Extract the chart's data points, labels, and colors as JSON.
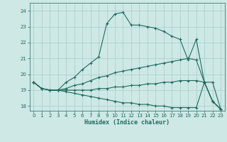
{
  "xlabel": "Humidex (Indice chaleur)",
  "bg_color": "#cde8e5",
  "grid_color": "#a8ccca",
  "line_color": "#1e6b5e",
  "xlim": [
    -0.5,
    23.5
  ],
  "ylim": [
    17.7,
    24.5
  ],
  "xticks": [
    0,
    1,
    2,
    3,
    4,
    5,
    6,
    7,
    8,
    9,
    10,
    11,
    12,
    13,
    14,
    15,
    16,
    17,
    18,
    19,
    20,
    21,
    22,
    23
  ],
  "yticks": [
    18,
    19,
    20,
    21,
    22,
    23,
    24
  ],
  "curves": [
    {
      "x": [
        0,
        1,
        2,
        3,
        4,
        5,
        6,
        7,
        8,
        9,
        10,
        11,
        12,
        13,
        14,
        15,
        16,
        17,
        18,
        19,
        20,
        21,
        22,
        23
      ],
      "y": [
        19.5,
        19.1,
        19.0,
        19.0,
        19.5,
        19.8,
        20.3,
        20.7,
        21.1,
        23.2,
        23.8,
        23.9,
        23.1,
        23.1,
        23.0,
        22.9,
        22.7,
        22.4,
        22.2,
        20.9,
        22.2,
        19.5,
        18.3,
        17.8
      ]
    },
    {
      "x": [
        0,
        1,
        2,
        3,
        4,
        5,
        6,
        7,
        8,
        9,
        10,
        11,
        12,
        13,
        14,
        15,
        16,
        17,
        18,
        19,
        20,
        21,
        22,
        23
      ],
      "y": [
        19.5,
        19.1,
        19.0,
        19.0,
        19.1,
        19.3,
        19.4,
        19.6,
        19.8,
        19.9,
        20.1,
        20.2,
        20.3,
        20.4,
        20.5,
        20.6,
        20.7,
        20.8,
        20.9,
        21.0,
        20.9,
        19.5,
        19.5,
        17.8
      ]
    },
    {
      "x": [
        0,
        1,
        2,
        3,
        4,
        5,
        6,
        7,
        8,
        9,
        10,
        11,
        12,
        13,
        14,
        15,
        16,
        17,
        18,
        19,
        20,
        21,
        22,
        23
      ],
      "y": [
        19.5,
        19.1,
        19.0,
        19.0,
        19.0,
        19.0,
        19.0,
        19.0,
        19.1,
        19.1,
        19.2,
        19.2,
        19.3,
        19.3,
        19.4,
        19.4,
        19.5,
        19.5,
        19.6,
        19.6,
        19.6,
        19.5,
        18.3,
        17.8
      ]
    },
    {
      "x": [
        0,
        1,
        2,
        3,
        4,
        5,
        6,
        7,
        8,
        9,
        10,
        11,
        12,
        13,
        14,
        15,
        16,
        17,
        18,
        19,
        20,
        21,
        22,
        23
      ],
      "y": [
        19.5,
        19.1,
        19.0,
        19.0,
        18.9,
        18.8,
        18.7,
        18.6,
        18.5,
        18.4,
        18.3,
        18.2,
        18.2,
        18.1,
        18.1,
        18.0,
        18.0,
        17.9,
        17.9,
        17.9,
        17.9,
        19.5,
        18.3,
        17.8
      ]
    }
  ]
}
